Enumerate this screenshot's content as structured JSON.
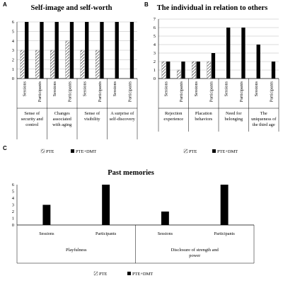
{
  "chart_data": [
    {
      "panel": "A",
      "type": "bar",
      "title": "Self-image and self-worth",
      "ylim": [
        0,
        6
      ],
      "yticks": [
        0,
        1,
        2,
        3,
        4,
        5,
        6
      ],
      "grid": true,
      "categories": [
        "Sessions",
        "Participants",
        "Sessions",
        "Participants",
        "Sessions",
        "Participants",
        "Sessions",
        "Participants"
      ],
      "groups": [
        {
          "label": "Sense of security and control",
          "lines": [
            "Sense of",
            "security and",
            "control"
          ]
        },
        {
          "label": "Changes associated with aging",
          "lines": [
            "Changes",
            "associated",
            "with aging"
          ]
        },
        {
          "label": "Sense of visibility",
          "lines": [
            "Sense of",
            "visibility"
          ]
        },
        {
          "label": "A surprise of self-discovery",
          "lines": [
            "A surprise of",
            "self-discovery"
          ]
        }
      ],
      "series": [
        {
          "name": "PTE",
          "pattern": "hatch",
          "values": [
            3,
            3,
            3,
            4,
            3,
            3,
            0,
            0
          ]
        },
        {
          "name": "PTE+DMT",
          "pattern": "solid",
          "values": [
            6,
            6,
            6,
            6,
            6,
            6,
            6,
            6
          ]
        }
      ],
      "legend": "bottom"
    },
    {
      "panel": "B",
      "type": "bar",
      "title": "The individual in relation to others",
      "ylim": [
        0,
        7
      ],
      "yticks": [
        0,
        1,
        2,
        3,
        4,
        5,
        6,
        7
      ],
      "grid": true,
      "categories": [
        "Sessions",
        "Participants",
        "Sessions",
        "Participants",
        "Sessions",
        "Participants",
        "Sessions",
        "Participants"
      ],
      "groups": [
        {
          "label": "Rejection experience",
          "lines": [
            "Rejection",
            "experience"
          ]
        },
        {
          "label": "Placation behaviors",
          "lines": [
            "Placation",
            "behaviors"
          ]
        },
        {
          "label": "Need for belonging",
          "lines": [
            "Need for",
            "belonging"
          ]
        },
        {
          "label": "The uniqueness of the third age",
          "lines": [
            "The",
            "uniqueness of",
            "the third age"
          ]
        }
      ],
      "series": [
        {
          "name": "PTE",
          "pattern": "hatch",
          "values": [
            2,
            1,
            2,
            2,
            0,
            0,
            0,
            0
          ]
        },
        {
          "name": "PTE+DMT",
          "pattern": "solid",
          "values": [
            2,
            2,
            2,
            3,
            6,
            6,
            4,
            2
          ]
        }
      ],
      "legend": "bottom"
    },
    {
      "panel": "C",
      "type": "bar",
      "title": "Past memories",
      "ylim": [
        0,
        6
      ],
      "yticks": [
        0,
        1,
        2,
        3,
        4,
        5,
        6
      ],
      "grid": false,
      "categories": [
        "Sessions",
        "Participants",
        "Sessions",
        "Participants"
      ],
      "groups": [
        {
          "label": "Playfulness",
          "lines": [
            "Playfulness"
          ]
        },
        {
          "label": "Disclosure of strength and power",
          "lines": [
            "Disclosure of strength and",
            "power"
          ]
        }
      ],
      "series": [
        {
          "name": "PTE",
          "pattern": "hatch",
          "values": [
            0,
            0,
            0,
            0
          ]
        },
        {
          "name": "PTE+DMT",
          "pattern": "solid",
          "values": [
            3,
            6,
            2,
            6
          ]
        }
      ],
      "legend": "bottom"
    }
  ]
}
